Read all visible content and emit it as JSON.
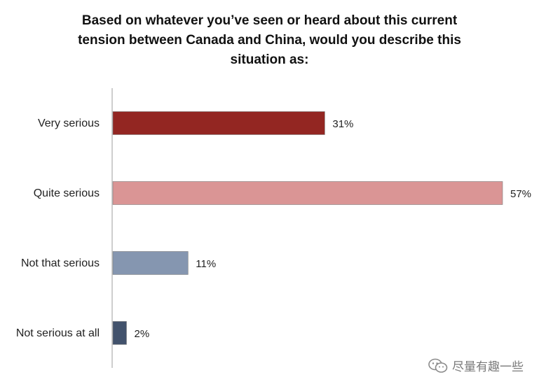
{
  "chart_data": {
    "type": "bar",
    "orientation": "horizontal",
    "title_lines": [
      "Based on whatever you’ve seen or heard about this current",
      "tension between Canada and China, would you describe this",
      "situation as:"
    ],
    "categories": [
      "Very serious",
      "Quite serious",
      "Not that serious",
      "Not serious at all"
    ],
    "values": [
      31,
      57,
      11,
      2
    ],
    "value_labels": [
      "31%",
      "57%",
      "11%",
      "2%"
    ],
    "colors": [
      "#932622",
      "#da9595",
      "#8596b0",
      "#42526c"
    ],
    "xlim": [
      0,
      57
    ],
    "grid": false,
    "legend": "none"
  },
  "watermark": {
    "text": "尽量有趣一些",
    "icon": "wechat-icon"
  }
}
